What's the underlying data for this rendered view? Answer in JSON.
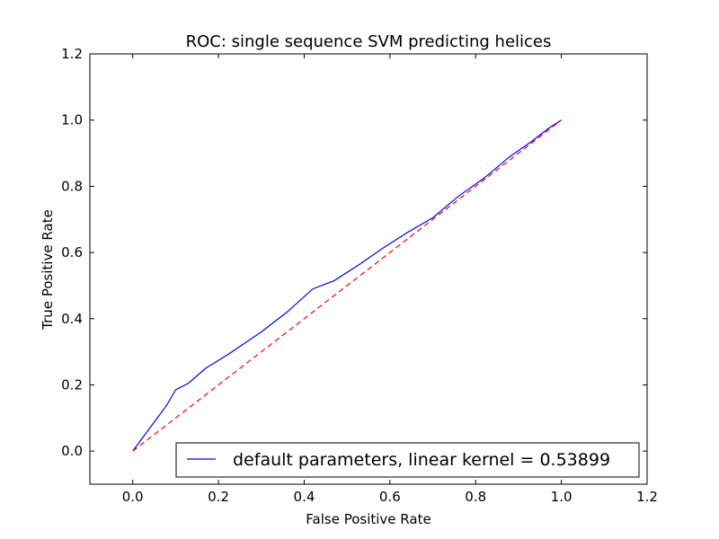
{
  "chart_data": {
    "type": "line",
    "title": "ROC: single sequence SVM predicting helices",
    "xlabel": "False Positive Rate",
    "ylabel": "True Positive Rate",
    "xlim": [
      -0.1,
      1.2
    ],
    "ylim": [
      -0.1,
      1.2
    ],
    "xticks": [
      "0.0",
      "0.2",
      "0.4",
      "0.6",
      "0.8",
      "1.0",
      "1.2"
    ],
    "yticks": [
      "0.0",
      "0.2",
      "0.4",
      "0.6",
      "0.8",
      "1.0",
      "1.2"
    ],
    "grid": false,
    "legend_position": "lower right",
    "series": [
      {
        "name": "default parameters, linear kernel = 0.53899",
        "color": "#0000ff",
        "style": "solid",
        "x": [
          0.0,
          0.04,
          0.08,
          0.1,
          0.13,
          0.17,
          0.22,
          0.3,
          0.36,
          0.42,
          0.47,
          0.53,
          0.58,
          0.64,
          0.7,
          0.76,
          0.82,
          0.88,
          0.93,
          0.97,
          1.0
        ],
        "y": [
          0.0,
          0.07,
          0.14,
          0.185,
          0.205,
          0.25,
          0.29,
          0.36,
          0.42,
          0.49,
          0.515,
          0.565,
          0.61,
          0.66,
          0.705,
          0.77,
          0.825,
          0.89,
          0.935,
          0.975,
          1.0
        ]
      },
      {
        "name": "",
        "color": "#ff0000",
        "style": "dashed",
        "x": [
          0.0,
          1.0
        ],
        "y": [
          0.0,
          1.0
        ]
      }
    ]
  }
}
